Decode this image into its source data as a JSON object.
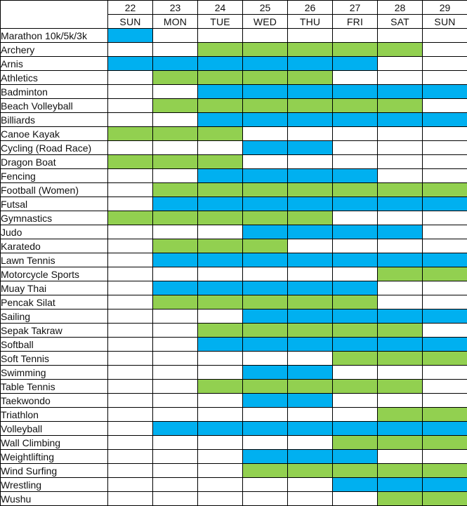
{
  "chart_data": {
    "type": "heatmap",
    "title": "",
    "corner_label": "",
    "legend_position": "none",
    "columns": {
      "dates": [
        "22",
        "23",
        "24",
        "25",
        "26",
        "27",
        "28",
        "29"
      ],
      "days": [
        "SUN",
        "MON",
        "TUE",
        "WED",
        "THU",
        "FRI",
        "SAT",
        "SUN"
      ]
    },
    "cell_colors": {
      "B": "#00B0F0",
      "G": "#92D050",
      "W": "#FFFFFF"
    },
    "rows": [
      {
        "sport": "Marathon 10k/5k/3k",
        "cells": [
          "B",
          "W",
          "W",
          "W",
          "W",
          "W",
          "W",
          "W"
        ]
      },
      {
        "sport": "Archery",
        "cells": [
          "W",
          "W",
          "G",
          "G",
          "G",
          "G",
          "G",
          "W"
        ]
      },
      {
        "sport": "Arnis",
        "cells": [
          "B",
          "B",
          "B",
          "B",
          "B",
          "B",
          "W",
          "W"
        ]
      },
      {
        "sport": "Athletics",
        "cells": [
          "W",
          "G",
          "G",
          "G",
          "G",
          "W",
          "W",
          "W"
        ]
      },
      {
        "sport": "Badminton",
        "cells": [
          "W",
          "W",
          "B",
          "B",
          "B",
          "B",
          "B",
          "B"
        ]
      },
      {
        "sport": "Beach Volleyball",
        "cells": [
          "W",
          "G",
          "G",
          "G",
          "G",
          "G",
          "G",
          "W"
        ]
      },
      {
        "sport": "Billiards",
        "cells": [
          "W",
          "W",
          "B",
          "B",
          "B",
          "B",
          "B",
          "B"
        ]
      },
      {
        "sport": "Canoe Kayak",
        "cells": [
          "G",
          "G",
          "G",
          "W",
          "W",
          "W",
          "W",
          "W"
        ]
      },
      {
        "sport": "Cycling (Road Race)",
        "cells": [
          "W",
          "W",
          "W",
          "B",
          "B",
          "W",
          "W",
          "W"
        ]
      },
      {
        "sport": "Dragon Boat",
        "cells": [
          "G",
          "G",
          "G",
          "W",
          "W",
          "W",
          "W",
          "W"
        ]
      },
      {
        "sport": "Fencing",
        "cells": [
          "W",
          "W",
          "B",
          "B",
          "B",
          "B",
          "W",
          "W"
        ]
      },
      {
        "sport": "Football (Women)",
        "cells": [
          "W",
          "G",
          "G",
          "G",
          "G",
          "G",
          "G",
          "G"
        ]
      },
      {
        "sport": "Futsal",
        "cells": [
          "W",
          "B",
          "B",
          "B",
          "B",
          "B",
          "B",
          "B"
        ]
      },
      {
        "sport": "Gymnastics",
        "cells": [
          "G",
          "G",
          "G",
          "G",
          "G",
          "W",
          "W",
          "W"
        ]
      },
      {
        "sport": "Judo",
        "cells": [
          "W",
          "W",
          "W",
          "B",
          "B",
          "B",
          "B",
          "W"
        ]
      },
      {
        "sport": "Karatedo",
        "cells": [
          "W",
          "G",
          "G",
          "G",
          "W",
          "W",
          "W",
          "W"
        ]
      },
      {
        "sport": "Lawn Tennis",
        "cells": [
          "W",
          "B",
          "B",
          "B",
          "B",
          "B",
          "B",
          "B"
        ]
      },
      {
        "sport": "Motorcycle Sports",
        "cells": [
          "W",
          "W",
          "W",
          "W",
          "W",
          "W",
          "G",
          "G"
        ]
      },
      {
        "sport": "Muay Thai",
        "cells": [
          "W",
          "B",
          "B",
          "B",
          "B",
          "B",
          "W",
          "W"
        ]
      },
      {
        "sport": "Pencak Silat",
        "cells": [
          "W",
          "G",
          "G",
          "G",
          "G",
          "G",
          "W",
          "W"
        ]
      },
      {
        "sport": "Sailing",
        "cells": [
          "W",
          "W",
          "W",
          "B",
          "B",
          "B",
          "B",
          "B"
        ]
      },
      {
        "sport": "Sepak Takraw",
        "cells": [
          "W",
          "W",
          "G",
          "G",
          "G",
          "G",
          "G",
          "W"
        ]
      },
      {
        "sport": "Softball",
        "cells": [
          "W",
          "W",
          "B",
          "B",
          "B",
          "B",
          "B",
          "B"
        ]
      },
      {
        "sport": "Soft Tennis",
        "cells": [
          "W",
          "W",
          "W",
          "W",
          "W",
          "G",
          "G",
          "G"
        ]
      },
      {
        "sport": "Swimming",
        "cells": [
          "W",
          "W",
          "W",
          "B",
          "B",
          "W",
          "W",
          "W"
        ]
      },
      {
        "sport": "Table Tennis",
        "cells": [
          "W",
          "W",
          "G",
          "G",
          "G",
          "G",
          "G",
          "W"
        ]
      },
      {
        "sport": "Taekwondo",
        "cells": [
          "W",
          "W",
          "W",
          "B",
          "B",
          "W",
          "W",
          "W"
        ]
      },
      {
        "sport": "Triathlon",
        "cells": [
          "W",
          "W",
          "W",
          "W",
          "W",
          "W",
          "G",
          "G"
        ]
      },
      {
        "sport": "Volleyball",
        "cells": [
          "W",
          "B",
          "B",
          "B",
          "B",
          "B",
          "B",
          "B"
        ]
      },
      {
        "sport": "Wall Climbing",
        "cells": [
          "W",
          "W",
          "W",
          "W",
          "W",
          "G",
          "G",
          "G"
        ]
      },
      {
        "sport": "Weightlifting",
        "cells": [
          "W",
          "W",
          "W",
          "B",
          "B",
          "B",
          "W",
          "W"
        ]
      },
      {
        "sport": "Wind Surfing",
        "cells": [
          "W",
          "W",
          "W",
          "G",
          "G",
          "G",
          "G",
          "G"
        ]
      },
      {
        "sport": "Wrestling",
        "cells": [
          "W",
          "W",
          "W",
          "W",
          "W",
          "B",
          "B",
          "B"
        ]
      },
      {
        "sport": "Wushu",
        "cells": [
          "W",
          "W",
          "W",
          "W",
          "W",
          "W",
          "G",
          "G"
        ]
      }
    ]
  }
}
